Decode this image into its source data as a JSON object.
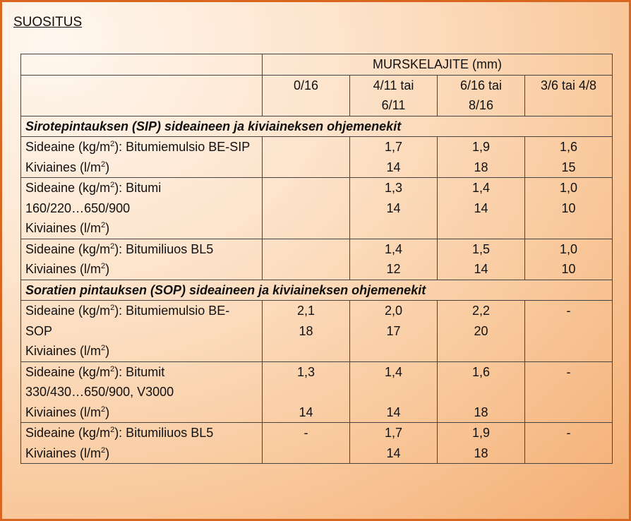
{
  "title": "SUOSITUS",
  "header": {
    "group": "MURSKELAJITE (mm)",
    "columns": [
      [
        "0/16"
      ],
      [
        "4/11 tai",
        "6/11"
      ],
      [
        "6/16 tai",
        "8/16"
      ],
      [
        "3/6 tai 4/8"
      ]
    ]
  },
  "sections": [
    {
      "title": "Sirotepintauksen (SIP) sideaineen ja kiviaineksen ohjemenekit",
      "rows": [
        {
          "desc": [
            {
              "pre": "Sideaine (kg/m",
              "sup": "2",
              "post": "): Bitumiemulsio BE-SIP"
            },
            {
              "pre": "Kiviaines (l/m",
              "sup": "2",
              "post": ")"
            }
          ],
          "values": [
            [],
            [
              "1,7",
              "14"
            ],
            [
              "1,9",
              "18"
            ],
            [
              "1,6",
              "15"
            ]
          ]
        },
        {
          "desc": [
            {
              "pre": "Sideaine (kg/m",
              "sup": "2",
              "post": "): Bitumi"
            },
            {
              "pre": "160/220…650/900",
              "sup": "",
              "post": ""
            },
            {
              "pre": "Kiviaines (l/m",
              "sup": "2",
              "post": ")"
            }
          ],
          "values": [
            [],
            [
              "1,3",
              "14"
            ],
            [
              "1,4",
              "14"
            ],
            [
              "1,0",
              "10"
            ]
          ]
        },
        {
          "desc": [
            {
              "pre": "Sideaine (kg/m",
              "sup": "2",
              "post": "): Bitumiliuos BL5"
            },
            {
              "pre": "Kiviaines (l/m",
              "sup": "2",
              "post": ")"
            }
          ],
          "values": [
            [],
            [
              "1,4",
              "12"
            ],
            [
              "1,5",
              "14"
            ],
            [
              "1,0",
              "10"
            ]
          ]
        }
      ]
    },
    {
      "title": "Soratien pintauksen (SOP) sideaineen ja kiviaineksen ohjemenekit",
      "rows": [
        {
          "desc": [
            {
              "pre": "Sideaine (kg/m",
              "sup": "2",
              "post": "): Bitumiemulsio BE-"
            },
            {
              "pre": "SOP",
              "sup": "",
              "post": ""
            },
            {
              "pre": "Kiviaines (l/m",
              "sup": "2",
              "post": ")"
            }
          ],
          "values": [
            [
              "2,1",
              "18"
            ],
            [
              "2,0",
              "17"
            ],
            [
              "2,2",
              "20"
            ],
            [
              "-"
            ]
          ]
        },
        {
          "desc": [
            {
              "pre": "Sideaine (kg/m",
              "sup": "2",
              "post": "): Bitumit"
            },
            {
              "pre": "330/430…650/900, V3000",
              "sup": "",
              "post": ""
            },
            {
              "pre": "Kiviaines (l/m",
              "sup": "2",
              "post": ")"
            }
          ],
          "values": [
            [
              "1,3",
              "",
              "14"
            ],
            [
              "1,4",
              "",
              "14"
            ],
            [
              "1,6",
              "",
              "18"
            ],
            [
              "-"
            ]
          ]
        },
        {
          "desc": [
            {
              "pre": "Sideaine (kg/m",
              "sup": "2",
              "post": "): Bitumiliuos BL5"
            },
            {
              "pre": "Kiviaines (l/m",
              "sup": "2",
              "post": ")"
            }
          ],
          "values": [
            [
              "-"
            ],
            [
              "1,7",
              "14"
            ],
            [
              "1,9",
              "18"
            ],
            [
              "-"
            ]
          ]
        }
      ]
    }
  ]
}
